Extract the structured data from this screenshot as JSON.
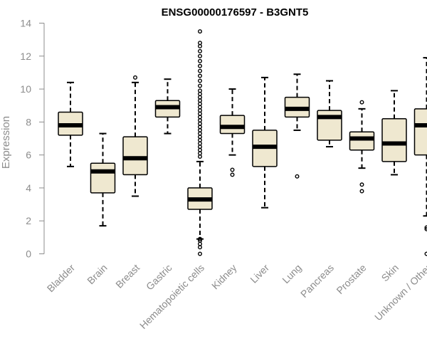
{
  "chart_data": {
    "type": "box",
    "title": "ENSG00000176597 - B3GNT5",
    "xlabel": "",
    "ylabel": "Expression",
    "ylim": [
      0,
      14
    ],
    "yticks": [
      0,
      2,
      4,
      6,
      8,
      10,
      12,
      14
    ],
    "grid": false,
    "colors": {
      "box_fill": "#efe8d0",
      "stroke": "#000000",
      "axis": "#8c8c8c"
    },
    "categories": [
      "Bladder",
      "Brain",
      "Breast",
      "Gastric",
      "Hematopoietic cells",
      "Kidney",
      "Liver",
      "Lung",
      "Pancreas",
      "Prostate",
      "Skin",
      "Unknown / Other"
    ],
    "boxes": [
      {
        "category": "Bladder",
        "whisker_low": 5.3,
        "q1": 7.2,
        "median": 7.8,
        "q3": 8.6,
        "whisker_high": 10.4,
        "outliers": []
      },
      {
        "category": "Brain",
        "whisker_low": 1.7,
        "q1": 3.7,
        "median": 5.0,
        "q3": 5.5,
        "whisker_high": 7.3,
        "outliers": []
      },
      {
        "category": "Breast",
        "whisker_low": 3.5,
        "q1": 4.8,
        "median": 5.8,
        "q3": 7.1,
        "whisker_high": 10.4,
        "outliers": [
          10.7
        ]
      },
      {
        "category": "Gastric",
        "whisker_low": 7.3,
        "q1": 8.3,
        "median": 8.9,
        "q3": 9.3,
        "whisker_high": 10.6,
        "outliers": []
      },
      {
        "category": "Hematopoietic cells",
        "whisker_low": 0.9,
        "q1": 2.7,
        "median": 3.3,
        "q3": 4.0,
        "whisker_high": 5.6,
        "outliers": [
          0.0,
          0.4,
          0.6,
          0.8,
          0.9,
          5.9,
          6.1,
          6.3,
          6.5,
          6.7,
          6.9,
          7.1,
          7.3,
          7.5,
          7.7,
          7.9,
          8.1,
          8.3,
          8.5,
          8.7,
          8.9,
          9.1,
          9.3,
          9.5,
          9.7,
          9.9,
          10.2,
          10.5,
          10.8,
          11.1,
          11.4,
          11.7,
          12.0,
          12.3,
          12.6,
          12.8,
          13.5
        ]
      },
      {
        "category": "Kidney",
        "whisker_low": 6.0,
        "q1": 7.3,
        "median": 7.7,
        "q3": 8.4,
        "whisker_high": 10.0,
        "outliers": [
          4.8,
          5.1
        ]
      },
      {
        "category": "Liver",
        "whisker_low": 2.8,
        "q1": 5.3,
        "median": 6.5,
        "q3": 7.5,
        "whisker_high": 10.7,
        "outliers": []
      },
      {
        "category": "Lung",
        "whisker_low": 7.5,
        "q1": 8.3,
        "median": 8.8,
        "q3": 9.5,
        "whisker_high": 10.9,
        "outliers": [
          4.7
        ]
      },
      {
        "category": "Pancreas",
        "whisker_low": 6.5,
        "q1": 6.9,
        "median": 8.3,
        "q3": 8.7,
        "whisker_high": 10.5,
        "outliers": []
      },
      {
        "category": "Prostate",
        "whisker_low": 5.2,
        "q1": 6.3,
        "median": 7.0,
        "q3": 7.4,
        "whisker_high": 8.8,
        "outliers": [
          9.2,
          4.2,
          3.8
        ]
      },
      {
        "category": "Skin",
        "whisker_low": 4.8,
        "q1": 5.6,
        "median": 6.7,
        "q3": 8.2,
        "whisker_high": 9.9,
        "outliers": []
      },
      {
        "category": "Unknown / Other",
        "whisker_low": 2.3,
        "q1": 6.0,
        "median": 7.8,
        "q3": 8.8,
        "whisker_high": 11.9,
        "outliers": [
          1.6,
          1.5,
          0.0
        ]
      }
    ]
  }
}
